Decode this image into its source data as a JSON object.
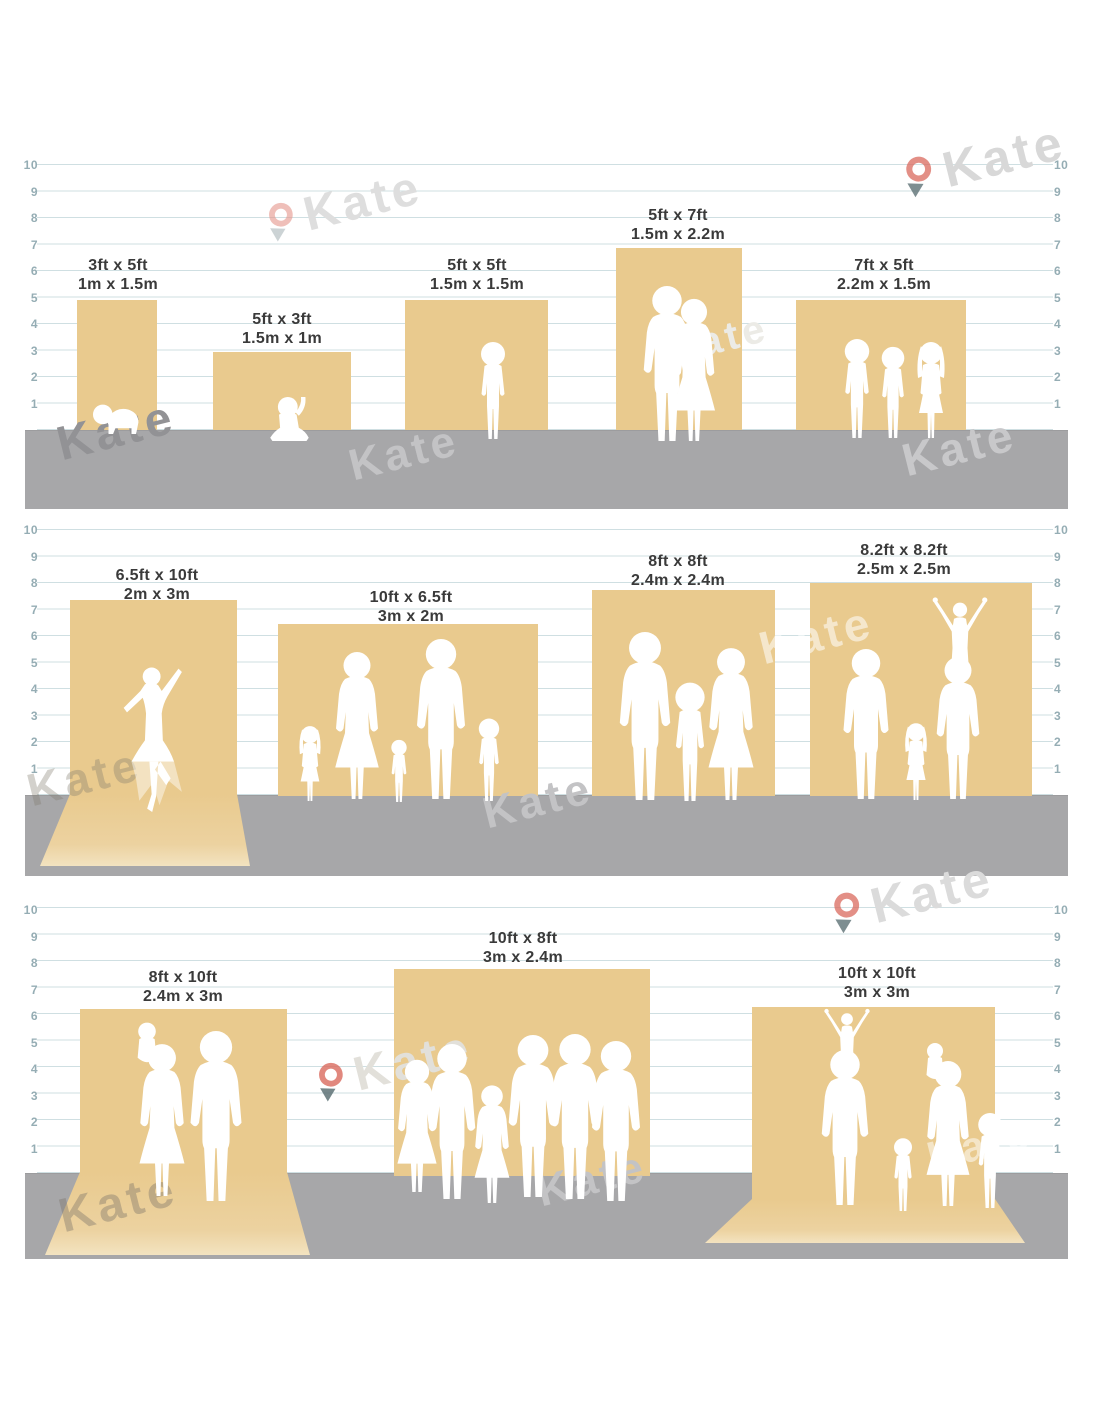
{
  "brand": {
    "watermark_text": "Kate"
  },
  "ruler": {
    "numbers": [
      "10",
      "9",
      "8",
      "7",
      "6",
      "5",
      "4",
      "3",
      "2",
      "1"
    ]
  },
  "rows": [
    {
      "name": "small-backdrops",
      "backdrops": [
        {
          "size_ft": "3ft x 5ft",
          "size_m": "1m x 1.5m",
          "scene": "crawling-baby"
        },
        {
          "size_ft": "5ft x 3ft",
          "size_m": "1.5m x 1m",
          "scene": "sitting-baby"
        },
        {
          "size_ft": "5ft x 5ft",
          "size_m": "1.5m x 1.5m",
          "scene": "standing-child"
        },
        {
          "size_ft": "5ft x 7ft",
          "size_m": "1.5m x 2.2m",
          "scene": "couple"
        },
        {
          "size_ft": "7ft x 5ft",
          "size_m": "2.2m x 1.5m",
          "scene": "three-children"
        }
      ]
    },
    {
      "name": "medium-backdrops",
      "backdrops": [
        {
          "size_ft": "6.5ft x 10ft",
          "size_m": "2m x 3m",
          "scene": "ballerina"
        },
        {
          "size_ft": "10ft x 6.5ft",
          "size_m": "3m x 2m",
          "scene": "family-of-five"
        },
        {
          "size_ft": "8ft x 8ft",
          "size_m": "2.4m x 2.4m",
          "scene": "family-of-three"
        },
        {
          "size_ft": "8.2ft x 8.2ft",
          "size_m": "2.5m x 2.5m",
          "scene": "family-with-cheering-child"
        }
      ]
    },
    {
      "name": "large-backdrops",
      "backdrops": [
        {
          "size_ft": "8ft x 10ft",
          "size_m": "2.4m x 3m",
          "scene": "couple-with-toddler"
        },
        {
          "size_ft": "10ft x 8ft",
          "size_m": "3m x 2.4m",
          "scene": "group-of-six"
        },
        {
          "size_ft": "10ft x 10ft",
          "size_m": "3m x 3m",
          "scene": "family-of-six"
        }
      ]
    }
  ],
  "colors": {
    "backdrop_tan": "#e9ca8e",
    "floor_gray": "#a7a7a9",
    "ruler_line": "#cfdfe2",
    "ruler_number": "#95adb4",
    "label_text": "#3a3a3a",
    "silhouette": "#ffffff",
    "logo_red": "#d96a5e",
    "logo_dark": "#5e7276"
  }
}
